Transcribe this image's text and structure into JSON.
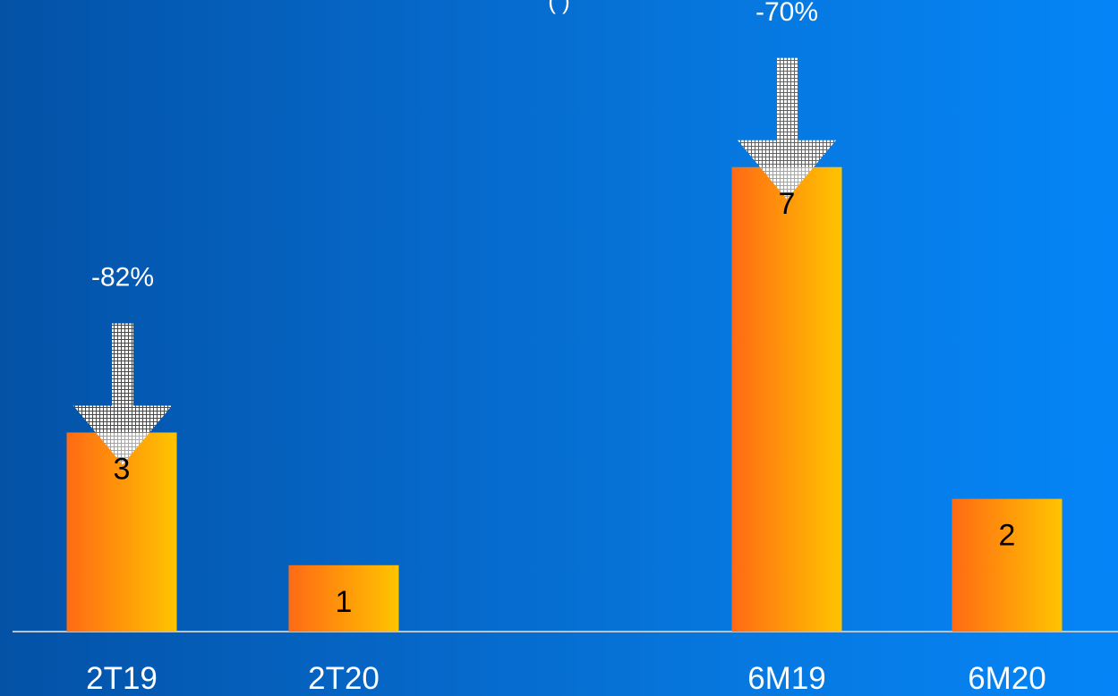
{
  "header": {
    "partial_text": "( )"
  },
  "chart_data": {
    "type": "bar",
    "categories": [
      "2T19",
      "2T20",
      "6M19",
      "6M20"
    ],
    "values": [
      3,
      1,
      7,
      2
    ],
    "value_labels": [
      "3",
      "1",
      "7",
      "2"
    ],
    "ylim": [
      0,
      7.9
    ],
    "grid": false,
    "legend": "none",
    "annotations": [
      {
        "text": "-82%",
        "from_category": "2T19",
        "to_category": "2T20"
      },
      {
        "text": "-70%",
        "from_category": "6M19",
        "to_category": "6M20"
      }
    ],
    "colors": {
      "bar_start": "#ff6a14",
      "bar_end": "#ffc400",
      "axis": "#b7c4d6",
      "arrow": "#ffffff"
    }
  }
}
